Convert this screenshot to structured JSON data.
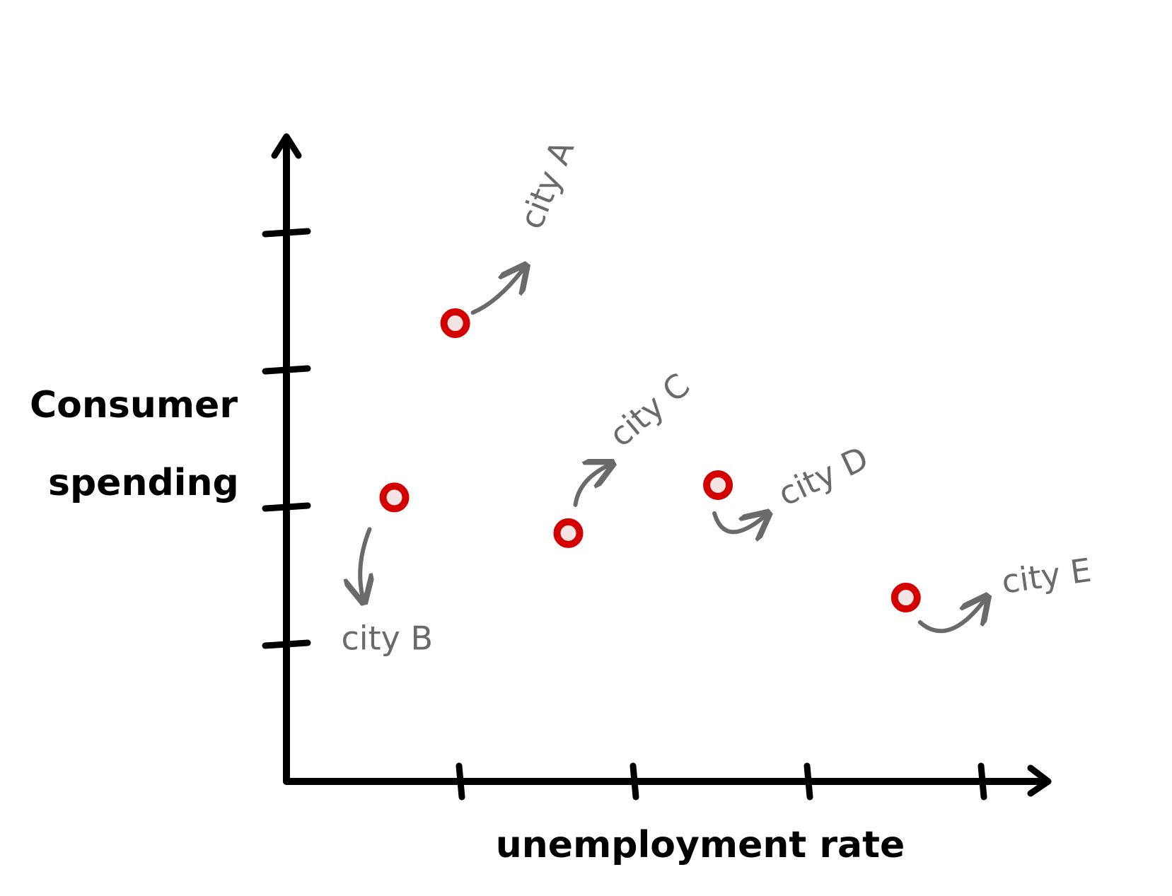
{
  "chart_data": {
    "type": "scatter",
    "xlabel": "unemployment rate",
    "ylabel_lines": [
      "Consumer",
      "spending"
    ],
    "x_ticks": 4,
    "y_ticks": 4,
    "grid": false,
    "points": [
      {
        "label": "city A",
        "x": 0.97,
        "y": 3.34,
        "color": "#d40000"
      },
      {
        "label": "city B",
        "x": 0.62,
        "y": 2.07,
        "color": "#d40000"
      },
      {
        "label": "city C",
        "x": 1.62,
        "y": 1.81,
        "color": "#d40000"
      },
      {
        "label": "city D",
        "x": 2.48,
        "y": 2.16,
        "color": "#d40000"
      },
      {
        "label": "city E",
        "x": 3.56,
        "y": 1.34,
        "color": "#d40000"
      }
    ]
  }
}
